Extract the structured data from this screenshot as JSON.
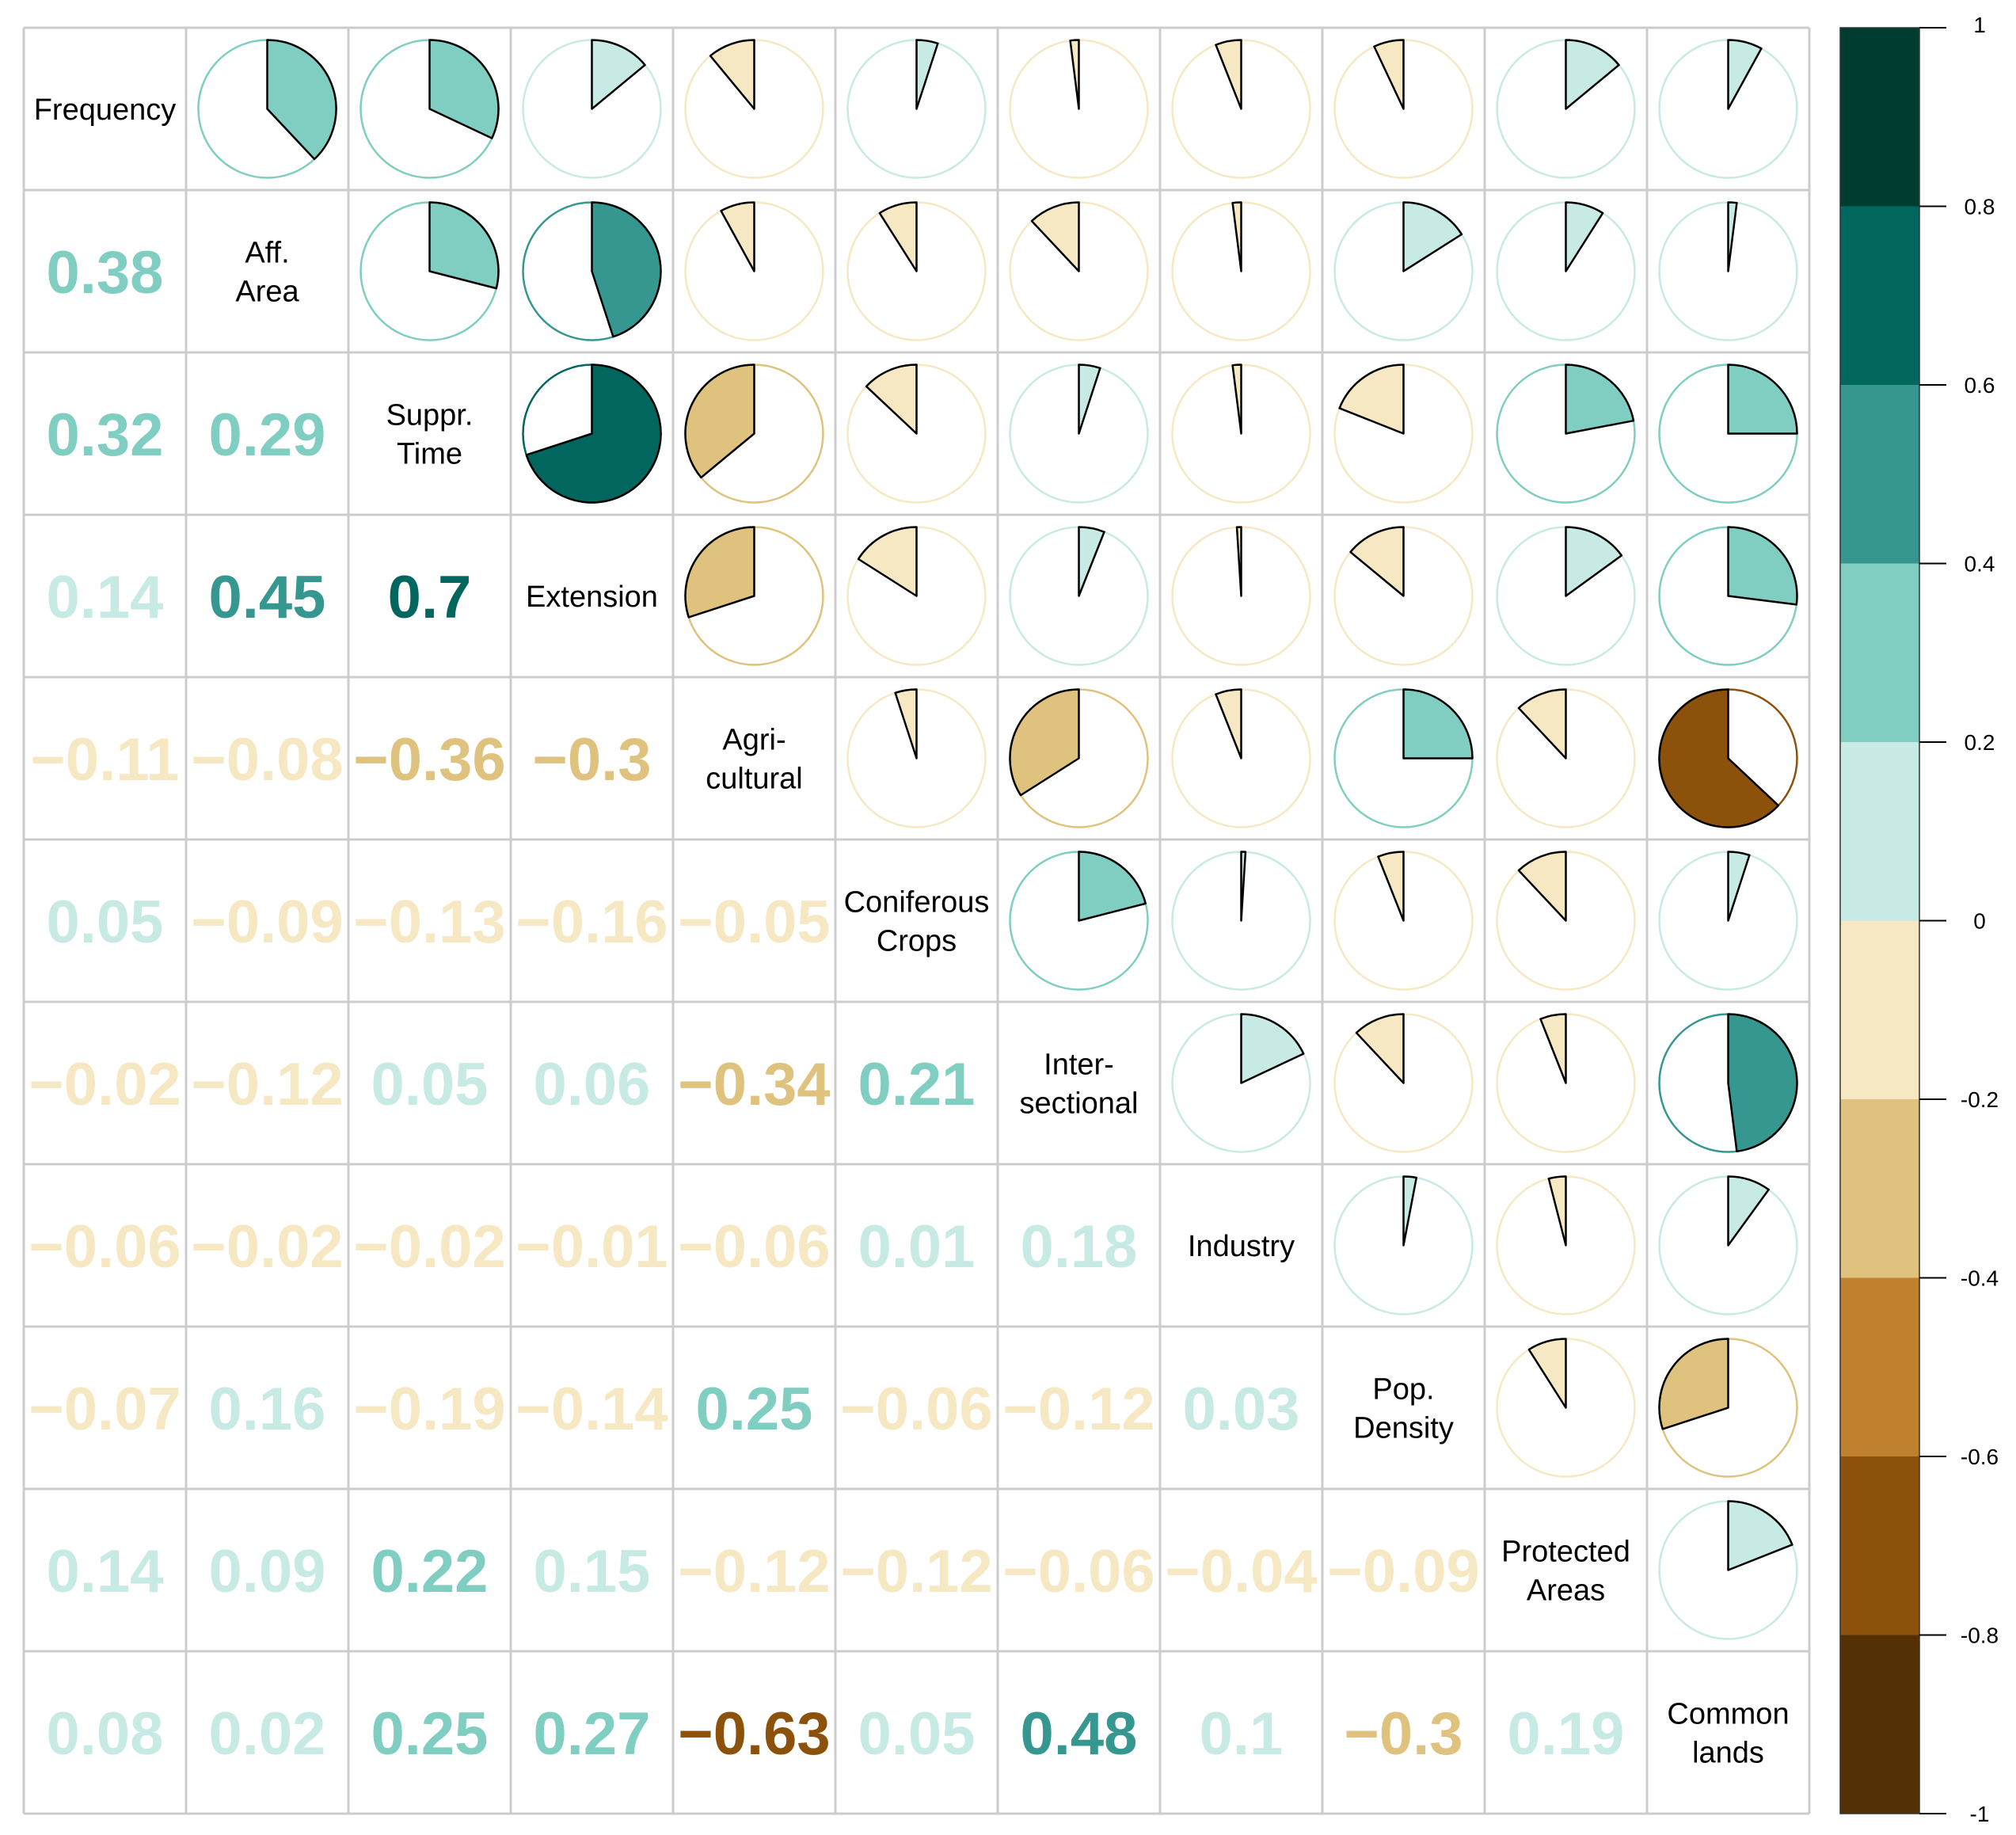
{
  "chart_data": {
    "type": "heatmap",
    "variables": [
      [
        "Frequency"
      ],
      [
        "Aff.",
        "Area"
      ],
      [
        "Suppr.",
        "Time"
      ],
      [
        "Extension"
      ],
      [
        "Agri-",
        "cultural"
      ],
      [
        "Coniferous",
        "Crops"
      ],
      [
        "Inter-",
        "sectional"
      ],
      [
        "Industry"
      ],
      [
        "Pop.",
        "Density"
      ],
      [
        "Protected",
        "Areas"
      ],
      [
        "Common",
        "lands"
      ]
    ],
    "matrix": [
      [
        1,
        0.38,
        0.32,
        0.14,
        -0.11,
        0.05,
        -0.02,
        -0.06,
        -0.07,
        0.14,
        0.08
      ],
      [
        0.38,
        1,
        0.29,
        0.45,
        -0.08,
        -0.09,
        -0.12,
        -0.02,
        0.16,
        0.09,
        0.02
      ],
      [
        0.32,
        0.29,
        1,
        0.7,
        -0.36,
        -0.13,
        0.05,
        -0.02,
        -0.19,
        0.22,
        0.25
      ],
      [
        0.14,
        0.45,
        0.7,
        1,
        -0.3,
        -0.16,
        0.06,
        -0.01,
        -0.14,
        0.15,
        0.27
      ],
      [
        -0.11,
        -0.08,
        -0.36,
        -0.3,
        1,
        -0.05,
        -0.34,
        -0.06,
        0.25,
        -0.12,
        -0.63
      ],
      [
        0.05,
        -0.09,
        -0.13,
        -0.16,
        -0.05,
        1,
        0.21,
        0.01,
        -0.06,
        -0.12,
        0.05
      ],
      [
        -0.02,
        -0.12,
        0.05,
        0.06,
        -0.34,
        0.21,
        1,
        0.18,
        -0.12,
        -0.06,
        0.48
      ],
      [
        -0.06,
        -0.02,
        -0.02,
        -0.01,
        -0.06,
        0.01,
        0.18,
        1,
        0.03,
        -0.04,
        0.1
      ],
      [
        -0.07,
        0.16,
        -0.19,
        -0.14,
        0.25,
        -0.06,
        -0.12,
        0.03,
        1,
        -0.09,
        -0.3
      ],
      [
        0.14,
        0.09,
        0.22,
        0.15,
        -0.12,
        -0.12,
        -0.06,
        -0.04,
        -0.09,
        1,
        0.19
      ],
      [
        0.08,
        0.02,
        0.25,
        0.27,
        -0.63,
        0.05,
        0.48,
        0.1,
        -0.3,
        0.19,
        1
      ]
    ],
    "lower_triangle": "numbers",
    "upper_triangle": "pies",
    "colorbar": {
      "range": [
        -1,
        1
      ],
      "ticks": [
        "1",
        "0.8",
        "0.6",
        "0.4",
        "0.2",
        "0",
        "-0.2",
        "-0.4",
        "-0.6",
        "-0.8",
        "-1"
      ],
      "colors_high_to_low": [
        "#003c30",
        "#01665e",
        "#35978f",
        "#80cdc1",
        "#c7eae5",
        "#f6e8c3",
        "#dfc27d",
        "#bf812d",
        "#8c510a",
        "#543005"
      ],
      "placement": "right"
    },
    "grid": true
  }
}
